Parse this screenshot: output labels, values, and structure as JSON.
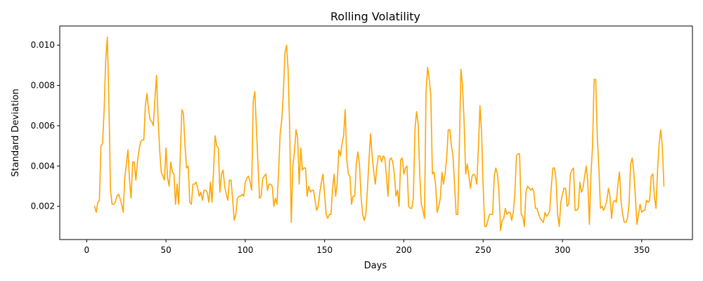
{
  "chart_data": {
    "type": "line",
    "title": "Rolling Volatility",
    "xlabel": "Days",
    "ylabel": "Standard Deviation",
    "xlim": [
      -17,
      382
    ],
    "ylim": [
      0.00035,
      0.01095
    ],
    "xticks": [
      0,
      50,
      100,
      150,
      200,
      250,
      300,
      350
    ],
    "xtick_labels": [
      "0",
      "50",
      "100",
      "150",
      "200",
      "250",
      "300",
      "350"
    ],
    "yticks": [
      0.002,
      0.004,
      0.006,
      0.008,
      0.01
    ],
    "ytick_labels": [
      "0.002",
      "0.004",
      "0.006",
      "0.008",
      "0.010"
    ],
    "grid": false,
    "series": [
      {
        "color": "#ffa500",
        "x": [
          5,
          6,
          7,
          8,
          9,
          10,
          11,
          12,
          13,
          14,
          15,
          16,
          17,
          18,
          19,
          20,
          21,
          22,
          23,
          24,
          25,
          26,
          27,
          28,
          29,
          30,
          31,
          32,
          33,
          34,
          35,
          36,
          37,
          38,
          39,
          40,
          41,
          42,
          43,
          44,
          45,
          46,
          47,
          48,
          49,
          50,
          51,
          52,
          53,
          54,
          55,
          56,
          57,
          58,
          59,
          60,
          61,
          62,
          63,
          64,
          65,
          66,
          67,
          68,
          69,
          70,
          71,
          72,
          73,
          74,
          75,
          76,
          77,
          78,
          79,
          80,
          81,
          82,
          83,
          84,
          85,
          86,
          87,
          88,
          89,
          90,
          91,
          92,
          93,
          94,
          95,
          96,
          97,
          98,
          99,
          100,
          101,
          102,
          103,
          104,
          105,
          106,
          107,
          108,
          109,
          110,
          111,
          112,
          113,
          114,
          115,
          116,
          117,
          118,
          119,
          120,
          121,
          122,
          123,
          124,
          125,
          126,
          127,
          128,
          129,
          130,
          131,
          132,
          133,
          134,
          135,
          136,
          137,
          138,
          139,
          140,
          141,
          142,
          143,
          144,
          145,
          146,
          147,
          148,
          149,
          150,
          151,
          152,
          153,
          154,
          155,
          156,
          157,
          158,
          159,
          160,
          161,
          162,
          163,
          164,
          165,
          166,
          167,
          168,
          169,
          170,
          171,
          172,
          173,
          174,
          175,
          176,
          177,
          178,
          179,
          180,
          181,
          182,
          183,
          184,
          185,
          186,
          187,
          188,
          189,
          190,
          191,
          192,
          193,
          194,
          195,
          196,
          197,
          198,
          199,
          200,
          201,
          202,
          203,
          204,
          205,
          206,
          207,
          208,
          209,
          210,
          211,
          212,
          213,
          214,
          215,
          216,
          217,
          218,
          219,
          220,
          221,
          222,
          223,
          224,
          225,
          226,
          227,
          228,
          229,
          230,
          231,
          232,
          233,
          234,
          235,
          236,
          237,
          238,
          239,
          240,
          241,
          242,
          243,
          244,
          245,
          246,
          247,
          248,
          249,
          250,
          251,
          252,
          253,
          254,
          255,
          256,
          257,
          258,
          259,
          260,
          261,
          262,
          263,
          264,
          265,
          266,
          267,
          268,
          269,
          270,
          271,
          272,
          273,
          274,
          275,
          276,
          277,
          278,
          279,
          280,
          281,
          282,
          283,
          284,
          285,
          286,
          287,
          288,
          289,
          290,
          291,
          292,
          293,
          294,
          295,
          296,
          297,
          298,
          299,
          300,
          301,
          302,
          303,
          304,
          305,
          306,
          307,
          308,
          309,
          310,
          311,
          312,
          313,
          314,
          315,
          316,
          317,
          318,
          319,
          320,
          321,
          322,
          323,
          324,
          325,
          326,
          327,
          328,
          329,
          330,
          331,
          332,
          333,
          334,
          335,
          336,
          337,
          338,
          339,
          340,
          341,
          342,
          343,
          344,
          345,
          346,
          347,
          348,
          349,
          350,
          351,
          352,
          353,
          354,
          355,
          356,
          357,
          358,
          359,
          360,
          361,
          362,
          363,
          364
        ],
        "y": [
          0.002,
          0.0017,
          0.0022,
          0.0023,
          0.005,
          0.0051,
          0.0068,
          0.0093,
          0.0104,
          0.0072,
          0.0028,
          0.0021,
          0.0021,
          0.0022,
          0.0025,
          0.0026,
          0.0024,
          0.0021,
          0.0017,
          0.0034,
          0.0041,
          0.0048,
          0.0033,
          0.0024,
          0.0042,
          0.0042,
          0.0033,
          0.0042,
          0.0048,
          0.0052,
          0.0053,
          0.0053,
          0.007,
          0.0076,
          0.0068,
          0.0063,
          0.0062,
          0.006,
          0.0073,
          0.0085,
          0.0064,
          0.0048,
          0.0037,
          0.0035,
          0.0033,
          0.0049,
          0.0034,
          0.003,
          0.0042,
          0.0037,
          0.0036,
          0.0021,
          0.0031,
          0.0021,
          0.0045,
          0.0068,
          0.0066,
          0.005,
          0.0039,
          0.004,
          0.0022,
          0.0021,
          0.0031,
          0.0031,
          0.0032,
          0.0029,
          0.0025,
          0.0027,
          0.0023,
          0.0028,
          0.0028,
          0.0027,
          0.0022,
          0.0032,
          0.0022,
          0.0038,
          0.0055,
          0.005,
          0.0049,
          0.0027,
          0.0036,
          0.0038,
          0.003,
          0.0026,
          0.0023,
          0.0033,
          0.0033,
          0.0024,
          0.0013,
          0.0016,
          0.0024,
          0.0025,
          0.0025,
          0.0026,
          0.0025,
          0.0032,
          0.0034,
          0.0035,
          0.0032,
          0.0028,
          0.0072,
          0.0077,
          0.0059,
          0.0041,
          0.0024,
          0.0025,
          0.0034,
          0.0035,
          0.0036,
          0.0028,
          0.0031,
          0.0031,
          0.003,
          0.002,
          0.0024,
          0.0021,
          0.0037,
          0.0056,
          0.0063,
          0.0076,
          0.0096,
          0.01,
          0.0088,
          0.0058,
          0.0012,
          0.004,
          0.0047,
          0.0058,
          0.0054,
          0.0031,
          0.0049,
          0.0038,
          0.0039,
          0.0039,
          0.0025,
          0.003,
          0.0027,
          0.0028,
          0.0028,
          0.0023,
          0.0018,
          0.002,
          0.0027,
          0.0032,
          0.0036,
          0.0026,
          0.0016,
          0.0014,
          0.0016,
          0.0016,
          0.0028,
          0.0036,
          0.0025,
          0.0032,
          0.0048,
          0.0045,
          0.0051,
          0.0055,
          0.0068,
          0.0043,
          0.0036,
          0.0035,
          0.0021,
          0.0025,
          0.0025,
          0.0041,
          0.0047,
          0.0041,
          0.0025,
          0.0016,
          0.0013,
          0.0016,
          0.0028,
          0.0043,
          0.0056,
          0.0045,
          0.0037,
          0.0031,
          0.004,
          0.0045,
          0.0045,
          0.0042,
          0.0045,
          0.0044,
          0.0035,
          0.0025,
          0.0043,
          0.0044,
          0.0042,
          0.0036,
          0.0025,
          0.0028,
          0.002,
          0.0043,
          0.0044,
          0.0036,
          0.0039,
          0.004,
          0.002,
          0.0019,
          0.0019,
          0.0024,
          0.0058,
          0.0067,
          0.0061,
          0.0036,
          0.0021,
          0.0018,
          0.0014,
          0.0077,
          0.0089,
          0.0083,
          0.0075,
          0.0036,
          0.0037,
          0.0031,
          0.0017,
          0.002,
          0.0024,
          0.0037,
          0.0031,
          0.0036,
          0.0044,
          0.0058,
          0.0058,
          0.005,
          0.0045,
          0.003,
          0.0016,
          0.0016,
          0.005,
          0.0088,
          0.008,
          0.0062,
          0.0036,
          0.0041,
          0.0035,
          0.0029,
          0.0035,
          0.0036,
          0.0035,
          0.0031,
          0.0049,
          0.007,
          0.0057,
          0.003,
          0.001,
          0.001,
          0.0013,
          0.0016,
          0.0016,
          0.0016,
          0.0035,
          0.0039,
          0.0036,
          0.0027,
          0.0008,
          0.0013,
          0.0014,
          0.0019,
          0.0016,
          0.0017,
          0.0017,
          0.0013,
          0.0017,
          0.0026,
          0.0045,
          0.0046,
          0.0046,
          0.0016,
          0.0015,
          0.001,
          0.0027,
          0.003,
          0.0029,
          0.0028,
          0.0029,
          0.0027,
          0.0019,
          0.0019,
          0.0016,
          0.0014,
          0.0013,
          0.0012,
          0.0017,
          0.0015,
          0.0016,
          0.0018,
          0.003,
          0.0039,
          0.0039,
          0.0033,
          0.0016,
          0.001,
          0.0022,
          0.0026,
          0.0029,
          0.0029,
          0.002,
          0.0021,
          0.0036,
          0.0038,
          0.0039,
          0.0018,
          0.0018,
          0.0019,
          0.0032,
          0.0027,
          0.0029,
          0.0035,
          0.004,
          0.0032,
          0.0011,
          0.0036,
          0.005,
          0.0083,
          0.0083,
          0.0054,
          0.0039,
          0.0019,
          0.002,
          0.0018,
          0.002,
          0.0023,
          0.0029,
          0.0025,
          0.0014,
          0.0022,
          0.0023,
          0.0022,
          0.0031,
          0.0037,
          0.0022,
          0.0016,
          0.0012,
          0.0012,
          0.0014,
          0.0021,
          0.0041,
          0.0044,
          0.0037,
          0.0025,
          0.0011,
          0.0016,
          0.0021,
          0.0017,
          0.0018,
          0.0018,
          0.0023,
          0.0022,
          0.0023,
          0.0035,
          0.0036,
          0.0025,
          0.0019,
          0.0038,
          0.0051,
          0.0058,
          0.005,
          0.003
        ]
      }
    ]
  }
}
